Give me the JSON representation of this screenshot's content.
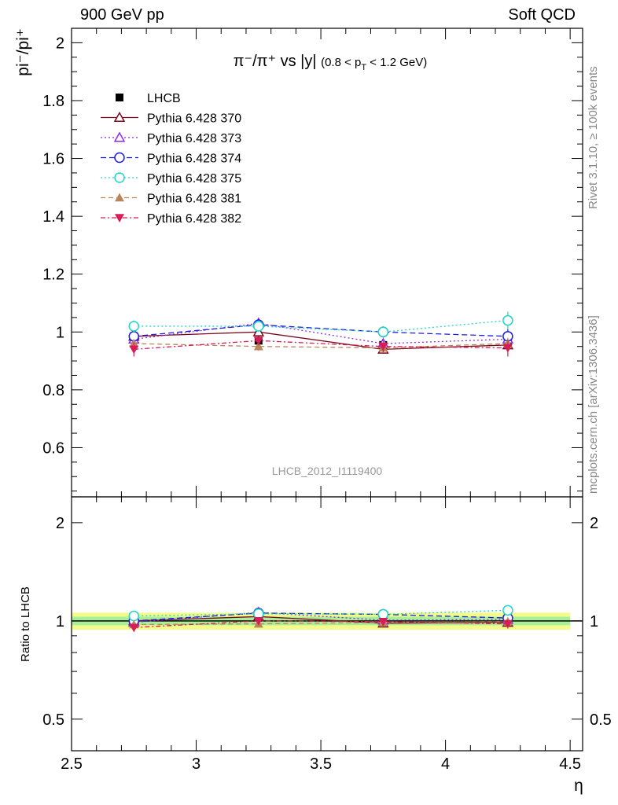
{
  "header": {
    "left": "900 GeV pp",
    "right": "Soft QCD"
  },
  "side_text": {
    "rivet": "Rivet 3.1.10, ≥ 100k events",
    "mcplots": "mcplots.cern.ch [arXiv:1306.3436]"
  },
  "watermark": "LHCB_2012_I1119400",
  "chart_data": {
    "type": "line",
    "title": "π⁻/π⁺ vs |y| (0.8 < pT < 1.2 GeV)",
    "title_parts": {
      "main": "π⁻/π⁺ vs |y|",
      "cut_open": "(0.8 < p",
      "cut_sub": "T",
      "cut_close": " < 1.2 GeV)"
    },
    "xlabel": "η",
    "ylabel_main": "pi⁻/pi⁺",
    "ylabel_ratio": "Ratio to LHCB",
    "xlim": [
      2.5,
      4.55
    ],
    "ylim_main": [
      0.43,
      2.05
    ],
    "ylim_ratio": [
      0.4,
      2.4
    ],
    "ratio_scale": "log",
    "x_ticks": [
      "2.5",
      "3",
      "3.5",
      "4",
      "4.5"
    ],
    "y_ticks_main": [
      "0.6",
      "0.8",
      "1",
      "1.2",
      "1.4",
      "1.6",
      "1.8",
      "2"
    ],
    "y_ticks_ratio": [
      "0.5",
      "1",
      "2"
    ],
    "x": [
      2.75,
      3.25,
      3.75,
      4.25
    ],
    "legend_position": "top-left",
    "data": {
      "name": "LHCB",
      "values": [
        0.985,
        0.97,
        0.955,
        0.965
      ],
      "errors": [
        0.02,
        0.02,
        0.02,
        0.02
      ],
      "color": "#000000"
    },
    "ratio_band": {
      "inner": 0.03,
      "outer": 0.06
    },
    "series": [
      {
        "name": "Pythia 6.428 370",
        "values": [
          0.985,
          1.0,
          0.94,
          0.955
        ],
        "errors": [
          0.01,
          0.01,
          0.015,
          0.02
        ],
        "color": "#7a0a1e",
        "dash": "",
        "marker": "triangle-open"
      },
      {
        "name": "Pythia 6.428 373",
        "values": [
          0.975,
          1.03,
          0.96,
          0.975
        ],
        "errors": [
          0.01,
          0.02,
          0.015,
          0.02
        ],
        "color": "#8a2be2",
        "dash": "2,3",
        "marker": "triangle-open"
      },
      {
        "name": "Pythia 6.428 374",
        "values": [
          0.985,
          1.025,
          1.0,
          0.985
        ],
        "errors": [
          0.01,
          0.02,
          0.02,
          0.025
        ],
        "color": "#1c1ce0",
        "dash": "7,4",
        "marker": "circle-open"
      },
      {
        "name": "Pythia 6.428 375",
        "values": [
          1.02,
          1.02,
          1.0,
          1.04
        ],
        "errors": [
          0.02,
          0.02,
          0.02,
          0.03
        ],
        "color": "#1fd6c7",
        "dash": "2,3",
        "marker": "circle-open"
      },
      {
        "name": "Pythia 6.428 381",
        "values": [
          0.96,
          0.95,
          0.945,
          0.96
        ],
        "errors": [
          0.015,
          0.015,
          0.015,
          0.02
        ],
        "color": "#b8865a",
        "dash": "6,4",
        "marker": "triangle-filled"
      },
      {
        "name": "Pythia 6.428 382",
        "values": [
          0.94,
          0.97,
          0.95,
          0.945
        ],
        "errors": [
          0.025,
          0.015,
          0.02,
          0.03
        ],
        "color": "#d81c55",
        "dash": "6,3,2,3",
        "marker": "triangle-down-filled"
      }
    ]
  }
}
